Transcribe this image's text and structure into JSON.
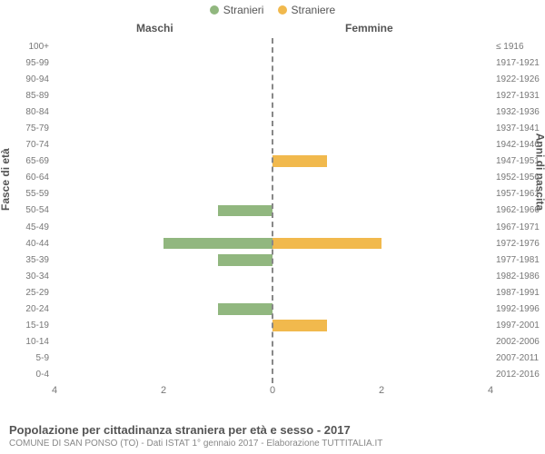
{
  "legend": {
    "male": {
      "label": "Stranieri",
      "color": "#91b77f"
    },
    "female": {
      "label": "Straniere",
      "color": "#f1b94d"
    }
  },
  "headers": {
    "left": "Maschi",
    "right": "Femmine"
  },
  "axis_titles": {
    "left": "Fasce di età",
    "right": "Anni di nascita"
  },
  "chart": {
    "type": "population-pyramid",
    "xmax": 4,
    "xticks": [
      4,
      2,
      0,
      0,
      2,
      4
    ],
    "center_line_color": "#888888",
    "background_color": "#ffffff",
    "bar_height_pct": 70,
    "categories": [
      {
        "age": "100+",
        "year": "≤ 1916",
        "m": 0,
        "f": 0
      },
      {
        "age": "95-99",
        "year": "1917-1921",
        "m": 0,
        "f": 0
      },
      {
        "age": "90-94",
        "year": "1922-1926",
        "m": 0,
        "f": 0
      },
      {
        "age": "85-89",
        "year": "1927-1931",
        "m": 0,
        "f": 0
      },
      {
        "age": "80-84",
        "year": "1932-1936",
        "m": 0,
        "f": 0
      },
      {
        "age": "75-79",
        "year": "1937-1941",
        "m": 0,
        "f": 0
      },
      {
        "age": "70-74",
        "year": "1942-1946",
        "m": 0,
        "f": 0
      },
      {
        "age": "65-69",
        "year": "1947-1951",
        "m": 0,
        "f": 1
      },
      {
        "age": "60-64",
        "year": "1952-1956",
        "m": 0,
        "f": 0
      },
      {
        "age": "55-59",
        "year": "1957-1961",
        "m": 0,
        "f": 0
      },
      {
        "age": "50-54",
        "year": "1962-1966",
        "m": 1,
        "f": 0
      },
      {
        "age": "45-49",
        "year": "1967-1971",
        "m": 0,
        "f": 0
      },
      {
        "age": "40-44",
        "year": "1972-1976",
        "m": 2,
        "f": 2
      },
      {
        "age": "35-39",
        "year": "1977-1981",
        "m": 1,
        "f": 0
      },
      {
        "age": "30-34",
        "year": "1982-1986",
        "m": 0,
        "f": 0
      },
      {
        "age": "25-29",
        "year": "1987-1991",
        "m": 0,
        "f": 0
      },
      {
        "age": "20-24",
        "year": "1992-1996",
        "m": 1,
        "f": 0
      },
      {
        "age": "15-19",
        "year": "1997-2001",
        "m": 0,
        "f": 1
      },
      {
        "age": "10-14",
        "year": "2002-2006",
        "m": 0,
        "f": 0
      },
      {
        "age": "5-9",
        "year": "2007-2011",
        "m": 0,
        "f": 0
      },
      {
        "age": "0-4",
        "year": "2012-2016",
        "m": 0,
        "f": 0
      }
    ]
  },
  "footer": {
    "title": "Popolazione per cittadinanza straniera per età e sesso - 2017",
    "subtitle": "COMUNE DI SAN PONSO (TO) - Dati ISTAT 1° gennaio 2017 - Elaborazione TUTTITALIA.IT"
  }
}
